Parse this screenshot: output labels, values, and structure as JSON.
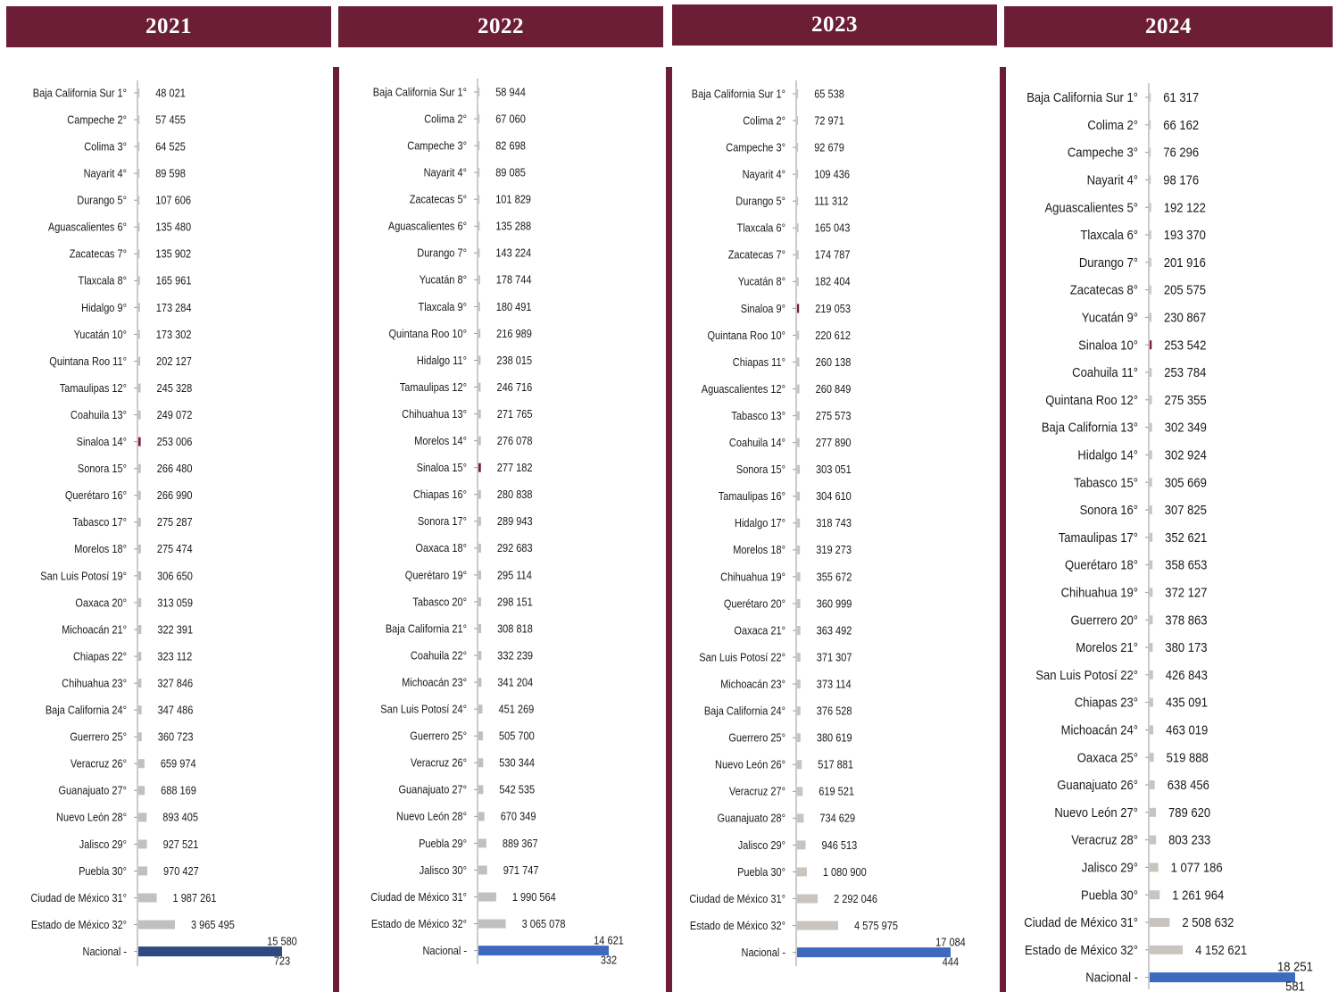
{
  "colors": {
    "header_bg": "#6b1e35",
    "bar_default": "#c0c0c0",
    "bar_2023": "#c9c4be",
    "bar_sinaloa": "#7d1d35",
    "bar_nacional_2021": "#2f4a80",
    "bar_nacional_other": "#3d6abf"
  },
  "chart_data": [
    {
      "type": "bar",
      "orientation": "horizontal",
      "title": "2021",
      "categories": [
        "Baja California Sur 1°",
        "Campeche 2°",
        "Colima 3°",
        "Nayarit 4°",
        "Durango 5°",
        "Aguascalientes 6°",
        "Zacatecas 7°",
        "Tlaxcala 8°",
        "Hidalgo 9°",
        "Yucatán 10°",
        "Quintana Roo 11°",
        "Tamaulipas 12°",
        "Coahuila 13°",
        "Sinaloa 14°",
        "Sonora 15°",
        "Querétaro 16°",
        "Tabasco 17°",
        "Morelos 18°",
        "San Luis Potosí 19°",
        "Oaxaca 20°",
        "Michoacán 21°",
        "Chiapas 22°",
        "Chihuahua 23°",
        "Baja California 24°",
        "Guerrero 25°",
        "Veracruz 26°",
        "Guanajuato 27°",
        "Nuevo León 28°",
        "Jalisco 29°",
        "Puebla 30°",
        "Ciudad de México 31°",
        "Estado de México 32°",
        "Nacional -"
      ],
      "values": [
        48021,
        57455,
        64525,
        89598,
        107606,
        135480,
        135902,
        165961,
        173284,
        173302,
        202127,
        245328,
        249072,
        253006,
        266480,
        266990,
        275287,
        275474,
        306650,
        313059,
        322391,
        323112,
        327846,
        347486,
        360723,
        659974,
        688169,
        893405,
        927521,
        970427,
        1987261,
        3965495,
        15580723
      ],
      "labels": [
        "48 021",
        "57 455",
        "64 525",
        "89 598",
        "107 606",
        "135 480",
        "135 902",
        "165 961",
        "173 284",
        "173 302",
        "202 127",
        "245 328",
        "249 072",
        "253 006",
        "266 480",
        "266 990",
        "275 287",
        "275 474",
        "306 650",
        "313 059",
        "322 391",
        "323 112",
        "327 846",
        "347 486",
        "360 723",
        "659 974",
        "688 169",
        "893 405",
        "927 521",
        "970 427",
        "1 987 261",
        "3 965 495",
        "15 580 723"
      ],
      "highlight": "Sinaloa 14°"
    },
    {
      "type": "bar",
      "orientation": "horizontal",
      "title": "2022",
      "categories": [
        "Baja California Sur 1°",
        "Colima 2°",
        "Campeche 3°",
        "Nayarit 4°",
        "Zacatecas 5°",
        "Aguascalientes 6°",
        "Durango 7°",
        "Yucatán 8°",
        "Tlaxcala 9°",
        "Quintana Roo 10°",
        "Hidalgo 11°",
        "Tamaulipas 12°",
        "Chihuahua 13°",
        "Morelos 14°",
        "Sinaloa 15°",
        "Chiapas 16°",
        "Sonora 17°",
        "Oaxaca 18°",
        "Querétaro 19°",
        "Tabasco 20°",
        "Baja California 21°",
        "Coahuila 22°",
        "Michoacán 23°",
        "San Luis Potosí 24°",
        "Guerrero 25°",
        "Veracruz 26°",
        "Guanajuato 27°",
        "Nuevo León 28°",
        "Puebla 29°",
        "Jalisco 30°",
        "Ciudad de México 31°",
        "Estado de México 32°",
        "Nacional -"
      ],
      "values": [
        58944,
        67060,
        82698,
        89085,
        101829,
        135288,
        143224,
        178744,
        180491,
        216989,
        238015,
        246716,
        271765,
        276078,
        277182,
        280838,
        289943,
        292683,
        295114,
        298151,
        308818,
        332239,
        341204,
        451269,
        505700,
        530344,
        542535,
        670349,
        889367,
        971747,
        1990564,
        3065078,
        14621332
      ],
      "labels": [
        "58 944",
        "67 060",
        "82 698",
        "89 085",
        "101 829",
        "135 288",
        "143 224",
        "178 744",
        "180 491",
        "216 989",
        "238 015",
        "246 716",
        "271 765",
        "276 078",
        "277 182",
        "280 838",
        "289 943",
        "292 683",
        "295 114",
        "298 151",
        "308 818",
        "332 239",
        "341 204",
        "451 269",
        "505 700",
        "530 344",
        "542 535",
        "670 349",
        "889 367",
        "971 747",
        "1 990 564",
        "3 065 078",
        "14 621 332"
      ],
      "highlight": "Sinaloa 15°"
    },
    {
      "type": "bar",
      "orientation": "horizontal",
      "title": "2023",
      "categories": [
        "Baja California Sur 1°",
        "Colima 2°",
        "Campeche 3°",
        "Nayarit 4°",
        "Durango 5°",
        "Tlaxcala 6°",
        "Zacatecas 7°",
        "Yucatán 8°",
        "Sinaloa 9°",
        "Quintana Roo 10°",
        "Chiapas 11°",
        "Aguascalientes 12°",
        "Tabasco 13°",
        "Coahuila 14°",
        "Sonora 15°",
        "Tamaulipas 16°",
        "Hidalgo 17°",
        "Morelos 18°",
        "Chihuahua 19°",
        "Querétaro 20°",
        "Oaxaca 21°",
        "San Luis Potosí 22°",
        "Michoacán 23°",
        "Baja California 24°",
        "Guerrero 25°",
        "Nuevo León 26°",
        "Veracruz 27°",
        "Guanajuato 28°",
        "Jalisco 29°",
        "Puebla 30°",
        "Ciudad de México 31°",
        "Estado de México 32°",
        "Nacional -"
      ],
      "values": [
        65538,
        72971,
        92679,
        109436,
        111312,
        165043,
        174787,
        182404,
        219053,
        220612,
        260138,
        260849,
        275573,
        277890,
        303051,
        304610,
        318743,
        319273,
        355672,
        360999,
        363492,
        371307,
        373114,
        376528,
        380619,
        517881,
        619521,
        734629,
        946513,
        1080900,
        2292046,
        4575975,
        17084444
      ],
      "labels": [
        "65 538",
        "72 971",
        "92 679",
        "109 436",
        "111 312",
        "165 043",
        "174 787",
        "182 404",
        "219 053",
        "220 612",
        "260 138",
        "260 849",
        "275 573",
        "277 890",
        "303 051",
        "304 610",
        "318 743",
        "319 273",
        "355 672",
        "360 999",
        "363 492",
        "371 307",
        "373 114",
        "376 528",
        "380 619",
        "517 881",
        "619 521",
        "734 629",
        "946 513",
        "1 080 900",
        "2 292 046",
        "4 575 975",
        "17 084 444"
      ],
      "highlight": "Sinaloa 9°"
    },
    {
      "type": "bar",
      "orientation": "horizontal",
      "title": "2024",
      "categories": [
        "Baja California Sur 1°",
        "Colima 2°",
        "Campeche 3°",
        "Nayarit 4°",
        "Aguascalientes 5°",
        "Tlaxcala 6°",
        "Durango 7°",
        "Zacatecas 8°",
        "Yucatán 9°",
        "Sinaloa 10°",
        "Coahuila 11°",
        "Quintana Roo 12°",
        "Baja California 13°",
        "Hidalgo 14°",
        "Tabasco 15°",
        "Sonora 16°",
        "Tamaulipas 17°",
        "Querétaro 18°",
        "Chihuahua 19°",
        "Guerrero 20°",
        "Morelos 21°",
        "San Luis Potosí 22°",
        "Chiapas 23°",
        "Michoacán 24°",
        "Oaxaca 25°",
        "Guanajuato 26°",
        "Nuevo León 27°",
        "Veracruz 28°",
        "Jalisco 29°",
        "Puebla 30°",
        "Ciudad de México 31°",
        "Estado de México 32°",
        "Nacional -"
      ],
      "values": [
        61317,
        66162,
        76296,
        98176,
        192122,
        193370,
        201916,
        205575,
        230867,
        253542,
        253784,
        275355,
        302349,
        302924,
        305669,
        307825,
        352621,
        358653,
        372127,
        378863,
        380173,
        426843,
        435091,
        463019,
        519888,
        638456,
        789620,
        803233,
        1077186,
        1261964,
        2508632,
        4152621,
        18251581
      ],
      "labels": [
        "61 317",
        "66 162",
        "76 296",
        "98 176",
        "192 122",
        "193 370",
        "201 916",
        "205 575",
        "230 867",
        "253 542",
        "253 784",
        "275 355",
        "302 349",
        "302 924",
        "305 669",
        "307 825",
        "352 621",
        "358 653",
        "372 127",
        "378 863",
        "380 173",
        "426 843",
        "435 091",
        "463 019",
        "519 888",
        "638 456",
        "789 620",
        "803 233",
        "1 077 186",
        "1 261 964",
        "2 508 632",
        "4 152 621",
        "18 251 581"
      ],
      "highlight": "Sinaloa 10°"
    }
  ]
}
